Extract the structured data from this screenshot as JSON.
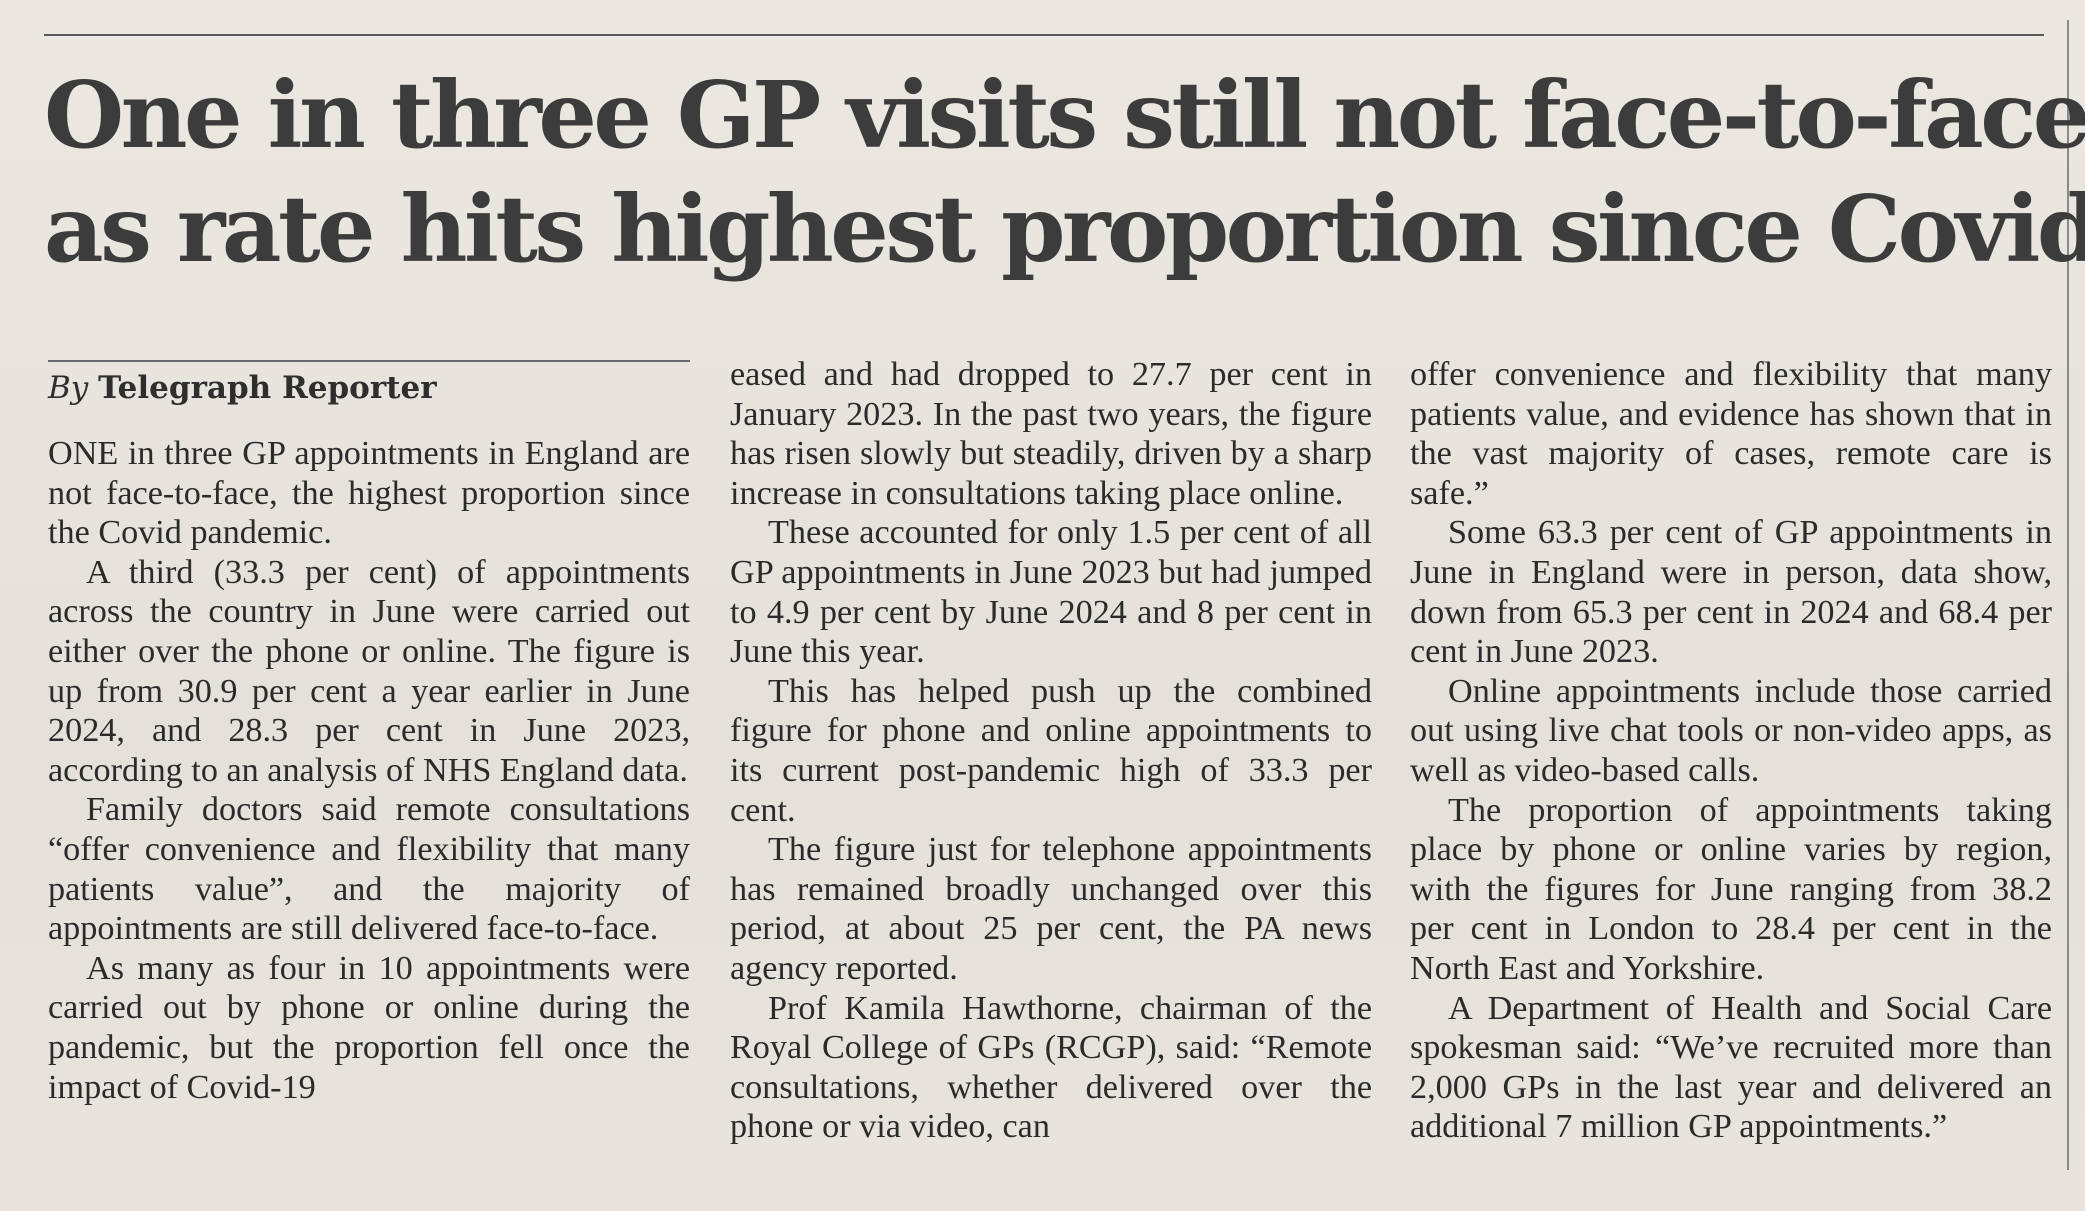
{
  "article": {
    "headline_line1": "One in three GP visits still not face-to-face",
    "headline_line2": "as rate hits highest proportion since Covid",
    "byline_prefix": "By",
    "byline_name": "Telegraph Reporter",
    "col1": [
      "ONE in three GP appointments in England are not face-to-face, the highest proportion since the Covid pandemic.",
      "A third (33.3 per cent) of appointments across the country in June were carried out either over the phone or online. The figure is up from 30.9 per cent a year earlier in June 2024, and 28.3 per cent in June 2023, according to an analysis of NHS England data.",
      "Family doctors said remote consultations “offer convenience and flexibility that many patients value”, and the majority of appointments are still delivered face-to-face.",
      "As many as four in 10 appointments were carried out by phone or online during the pandemic, but the proportion fell once the impact of Covid-19"
    ],
    "col2": [
      "eased and had dropped to 27.7 per cent in January 2023. In the past two years, the figure has risen slowly but steadily, driven by a sharp increase in consultations taking place online.",
      "These accounted for only 1.5 per cent of all GP appointments in June 2023 but had jumped to 4.9 per cent by June 2024 and 8 per cent in June this year.",
      "This has helped push up the combined figure for phone and online appointments to its current post-pandemic high of 33.3 per cent.",
      "The figure just for telephone appointments has remained broadly unchanged over this period, at about 25 per cent, the PA news agency reported.",
      "Prof Kamila Hawthorne, chairman of the Royal College of GPs (RCGP), said: “Remote consultations, whether delivered over the phone or via video, can"
    ],
    "col3": [
      "offer convenience and flexibility that many patients value, and evidence has shown that in the vast majority of cases, remote care is safe.”",
      "Some 63.3 per cent of GP appointments in June in England were in person, data show, down from 65.3 per cent in 2024 and 68.4 per cent in June 2023.",
      "Online appointments include those carried out using live chat tools or non-video apps, as well as video-based calls.",
      "The proportion of appointments taking place by phone or online varies by region, with the figures for June ranging from 38.2 per cent in London to 28.4 per cent in the North East and Yorkshire.",
      "A Department of Health and Social Care spokesman said: “We’ve recruited more than 2,000 GPs in the last year and delivered an additional 7 million GP appointments.”"
    ]
  }
}
